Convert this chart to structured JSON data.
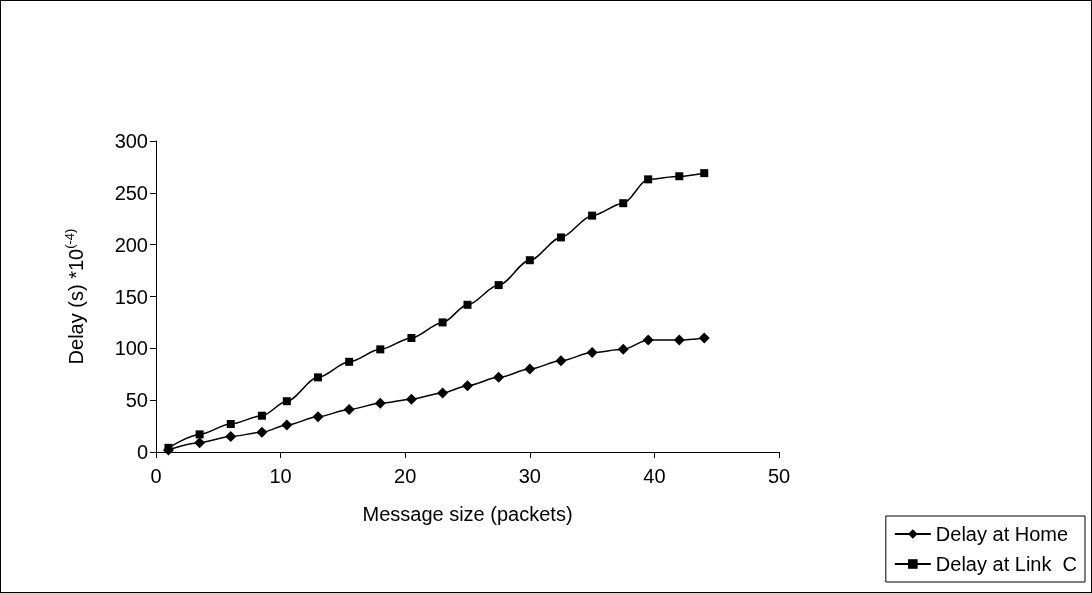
{
  "chart_data": {
    "type": "line",
    "xlabel": "Message size (packets)",
    "ylabel": "Delay (s) *10$^{(-4)}$",
    "x": [
      1,
      3.5,
      6,
      8.5,
      10.5,
      13,
      15.5,
      18,
      20.5,
      23,
      25,
      27.5,
      30,
      32.5,
      35,
      37.5,
      39.5,
      42,
      44
    ],
    "series": [
      {
        "name": "Delay at Home",
        "color": "#000000",
        "marker": "diamond",
        "values": [
          2,
          9,
          15,
          19,
          26,
          34,
          41,
          47,
          51,
          57,
          64,
          72,
          80,
          88,
          96,
          99,
          108,
          108,
          110
        ]
      },
      {
        "name": "Delay at Link  C",
        "color": "#000000",
        "marker": "square",
        "values": [
          4,
          17,
          27,
          35,
          49,
          72,
          87,
          99,
          110,
          125,
          142,
          161,
          185,
          207,
          228,
          240,
          263,
          266,
          269
        ]
      }
    ],
    "xlim": [
      0,
      50
    ],
    "xticks": [
      0,
      10,
      20,
      30,
      40,
      50
    ],
    "ylim": [
      0,
      300
    ],
    "yticks": [
      0,
      50,
      100,
      150,
      200,
      250,
      300
    ],
    "grid": false,
    "legend": "bottom right",
    "line_style": "solid"
  }
}
